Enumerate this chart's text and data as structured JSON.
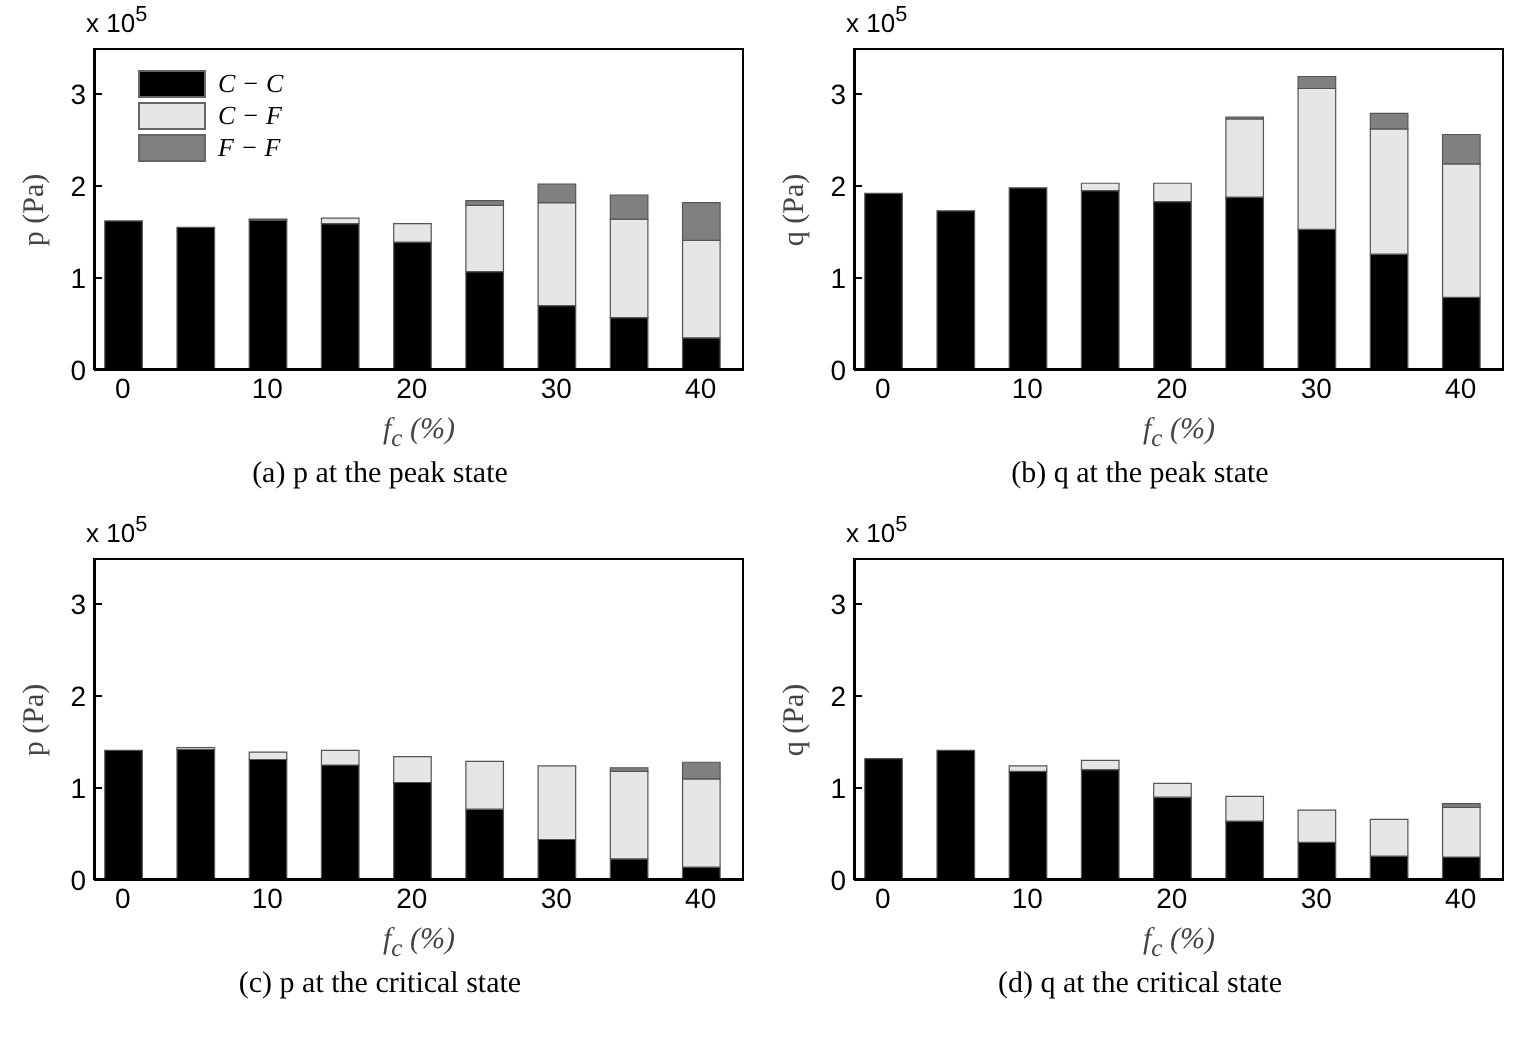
{
  "chart_data": [
    {
      "type": "bar",
      "stacked": true,
      "title": "(a) p at the peak state",
      "xlabel": "f$_{c}$ (%)",
      "ylabel": "p (Pa)",
      "annotations": [
        "x 10$^{5}$"
      ],
      "legend": "top left",
      "x": [
        0,
        5,
        10,
        15,
        20,
        25,
        30,
        35,
        40
      ],
      "xlim": [
        -2,
        43
      ],
      "xticks": [
        0,
        10,
        20,
        30,
        40
      ],
      "ylim": [
        0,
        3.5
      ],
      "yticks": [
        0,
        1,
        2,
        3
      ],
      "series": [
        {
          "name": "C − C",
          "color": "#000000",
          "values": [
            1.62,
            1.55,
            1.63,
            1.59,
            1.39,
            1.07,
            0.7,
            0.57,
            0.35
          ]
        },
        {
          "name": "C − F",
          "color": "#e6e6e6",
          "values": [
            0,
            0,
            0.01,
            0.06,
            0.2,
            0.72,
            1.12,
            1.07,
            1.06
          ]
        },
        {
          "name": "F − F",
          "color": "#808080",
          "values": [
            0,
            0,
            0,
            0,
            0,
            0.05,
            0.2,
            0.26,
            0.41
          ]
        }
      ]
    },
    {
      "type": "bar",
      "stacked": true,
      "title": "(b) q at the peak state",
      "xlabel": "f$_{c}$ (%)",
      "ylabel": "q (Pa)",
      "annotations": [
        "x 10$^{5}$"
      ],
      "x": [
        0,
        5,
        10,
        15,
        20,
        25,
        30,
        35,
        40
      ],
      "xlim": [
        -2,
        43
      ],
      "xticks": [
        0,
        10,
        20,
        30,
        40
      ],
      "ylim": [
        0,
        3.5
      ],
      "yticks": [
        0,
        1,
        2,
        3
      ],
      "series": [
        {
          "color": "#000000",
          "values": [
            1.92,
            1.73,
            1.98,
            1.95,
            1.83,
            1.88,
            1.53,
            1.26,
            0.79
          ]
        },
        {
          "color": "#e6e6e6",
          "values": [
            0,
            0,
            0,
            0.08,
            0.2,
            0.85,
            1.53,
            1.36,
            1.45
          ]
        },
        {
          "color": "#808080",
          "values": [
            0,
            0,
            0,
            0,
            0,
            0.02,
            0.13,
            0.17,
            0.32
          ]
        }
      ]
    },
    {
      "type": "bar",
      "stacked": true,
      "title": "(c) p at the critical state",
      "xlabel": "f$_{c}$ (%)",
      "ylabel": "p (Pa)",
      "annotations": [
        "x 10$^{5}$"
      ],
      "x": [
        0,
        5,
        10,
        15,
        20,
        25,
        30,
        35,
        40
      ],
      "xlim": [
        -2,
        43
      ],
      "xticks": [
        0,
        10,
        20,
        30,
        40
      ],
      "ylim": [
        0,
        3.5
      ],
      "yticks": [
        0,
        1,
        2,
        3
      ],
      "series": [
        {
          "color": "#000000",
          "values": [
            1.41,
            1.42,
            1.31,
            1.25,
            1.06,
            0.77,
            0.44,
            0.23,
            0.14
          ]
        },
        {
          "color": "#e6e6e6",
          "values": [
            0,
            0.02,
            0.08,
            0.16,
            0.28,
            0.52,
            0.8,
            0.95,
            0.96
          ]
        },
        {
          "color": "#808080",
          "values": [
            0,
            0,
            0,
            0,
            0,
            0,
            0,
            0.04,
            0.18
          ]
        }
      ]
    },
    {
      "type": "bar",
      "stacked": true,
      "title": "(d) q at the critical state",
      "xlabel": "f$_{c}$ (%)",
      "ylabel": "q (Pa)",
      "annotations": [
        "x 10$^{5}$"
      ],
      "x": [
        0,
        5,
        10,
        15,
        20,
        25,
        30,
        35,
        40
      ],
      "xlim": [
        -2,
        43
      ],
      "xticks": [
        0,
        10,
        20,
        30,
        40
      ],
      "ylim": [
        0,
        3.5
      ],
      "yticks": [
        0,
        1,
        2,
        3
      ],
      "series": [
        {
          "color": "#000000",
          "values": [
            1.32,
            1.41,
            1.18,
            1.2,
            0.9,
            0.64,
            0.41,
            0.26,
            0.25
          ]
        },
        {
          "color": "#e6e6e6",
          "values": [
            0,
            0,
            0.06,
            0.1,
            0.15,
            0.27,
            0.35,
            0.4,
            0.54
          ]
        },
        {
          "color": "#808080",
          "values": [
            0,
            0,
            0,
            0,
            0,
            0,
            0,
            0,
            0.04
          ]
        }
      ]
    }
  ]
}
